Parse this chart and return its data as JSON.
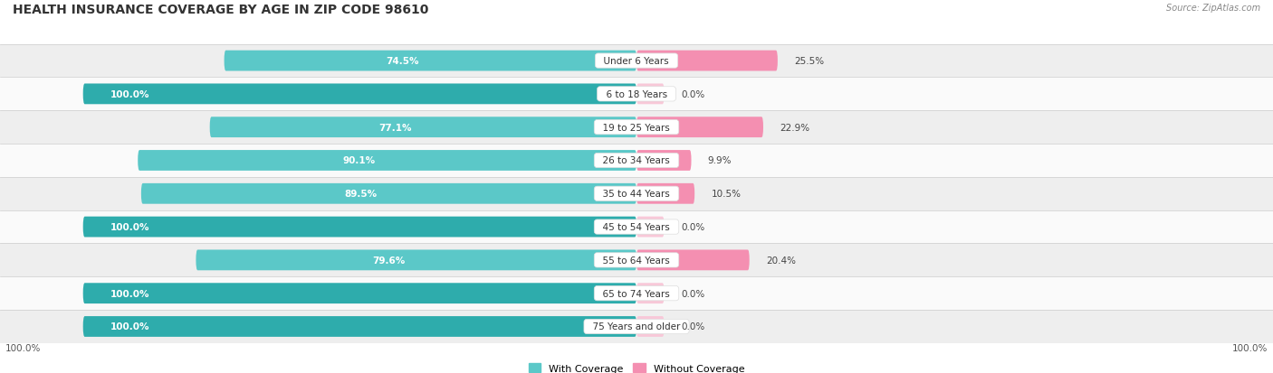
{
  "title": "HEALTH INSURANCE COVERAGE BY AGE IN ZIP CODE 98610",
  "source": "Source: ZipAtlas.com",
  "categories": [
    "Under 6 Years",
    "6 to 18 Years",
    "19 to 25 Years",
    "26 to 34 Years",
    "35 to 44 Years",
    "45 to 54 Years",
    "55 to 64 Years",
    "65 to 74 Years",
    "75 Years and older"
  ],
  "with_coverage": [
    74.5,
    100.0,
    77.1,
    90.1,
    89.5,
    100.0,
    79.6,
    100.0,
    100.0
  ],
  "without_coverage": [
    25.5,
    0.0,
    22.9,
    9.9,
    10.5,
    0.0,
    20.4,
    0.0,
    0.0
  ],
  "color_with": "#5BC8C8",
  "color_without": "#F48FB1",
  "color_with_100": "#2EACAC",
  "title_fontsize": 10,
  "label_fontsize": 8,
  "bar_height": 0.62,
  "legend_label_with": "With Coverage",
  "legend_label_without": "Without Coverage",
  "axis_label_left": "100.0%",
  "axis_label_right": "100.0%",
  "row_bg_light": "#EEEEEE",
  "row_bg_white": "#FAFAFA",
  "scale": 100
}
